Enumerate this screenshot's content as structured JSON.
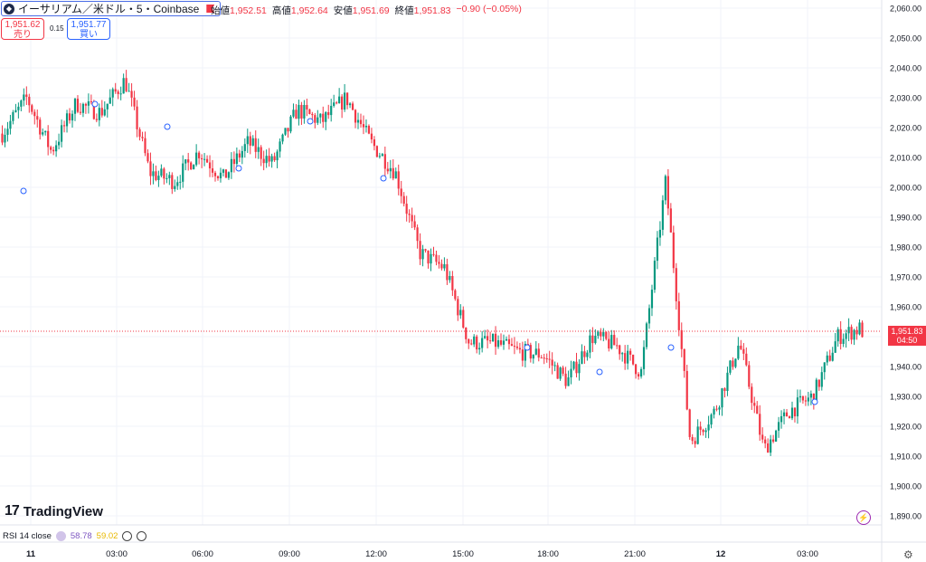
{
  "header": {
    "symbol": "イーサリアム／米ドル・5・Coinbase",
    "ohlc": [
      {
        "label": "始値",
        "value": "1,952.51"
      },
      {
        "label": "高値",
        "value": "1,952.64"
      },
      {
        "label": "安値",
        "value": "1,951.69"
      },
      {
        "label": "終値",
        "value": "1,951.83"
      }
    ],
    "change": "−0.90 (−0.05%)"
  },
  "trade": {
    "sell_price": "1,951.62",
    "sell_label": "売り",
    "buy_price": "1,951.77",
    "buy_label": "買い",
    "spread": "0.15"
  },
  "last_price": {
    "price": "1,951.83",
    "countdown": "04:50"
  },
  "logo": "TradingView",
  "indicator": {
    "name": "RSI 14 close",
    "value1": "58.78",
    "value2": "59.02"
  },
  "colors": {
    "up": "#089981",
    "down": "#f23645",
    "grid": "#f0f3fa",
    "accent": "#2962ff"
  },
  "icons": [
    "ethereum-icon",
    "flag-icon",
    "settings-icon",
    "bolt-icon"
  ],
  "chart_data": {
    "type": "candlestick",
    "x_tick_labels": [
      "11",
      "03:00",
      "06:00",
      "09:00",
      "12:00",
      "15:00",
      "18:00",
      "21:00",
      "12",
      "03:00"
    ],
    "y_tick_labels": [
      "2,060.00",
      "2,050.00",
      "2,040.00",
      "2,030.00",
      "2,020.00",
      "2,010.00",
      "2,000.00",
      "1,990.00",
      "1,980.00",
      "1,970.00",
      "1,960.00",
      "1,950.00",
      "1,940.00",
      "1,930.00",
      "1,920.00",
      "1,910.00",
      "1,900.00",
      "1,890.00"
    ],
    "ylim": [
      1885,
      2063
    ],
    "anchor_close_prices": [
      2018,
      2030,
      2012,
      2028,
      2025,
      2036,
      2005,
      2002,
      2012,
      2003,
      2015,
      2008,
      2026,
      2022,
      2030,
      2015,
      2005,
      1978,
      1973,
      1948,
      1948,
      1945,
      1944,
      1935,
      1950,
      1947,
      1938,
      2002,
      1915,
      1925,
      1948,
      1912,
      1925,
      1930,
      1950,
      1953
    ],
    "last": 1951.83
  }
}
